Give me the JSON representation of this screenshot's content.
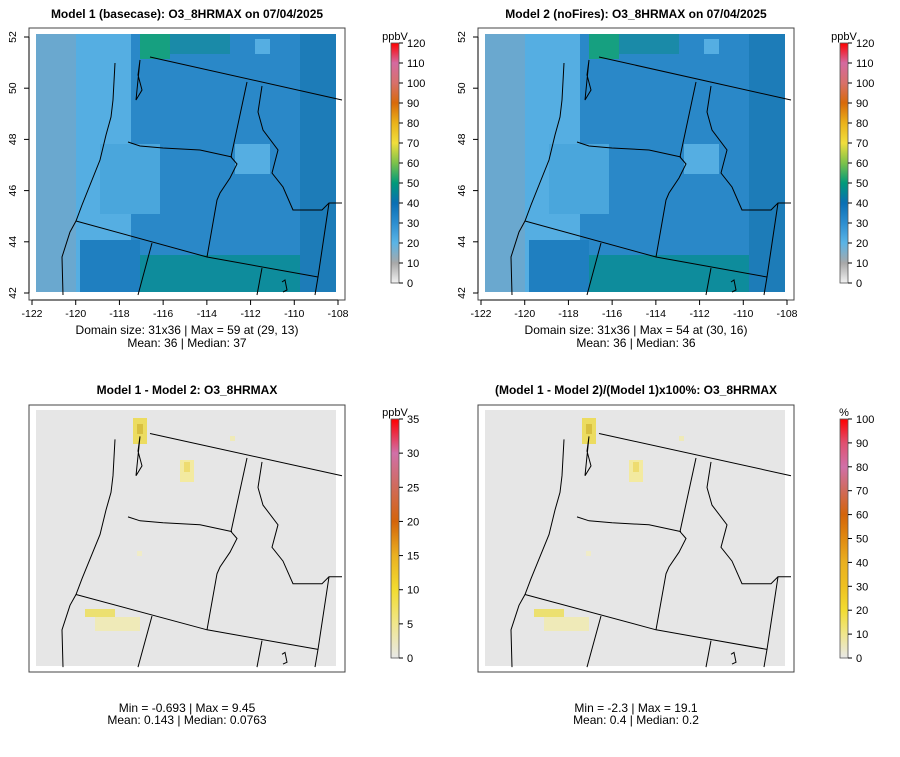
{
  "panels": [
    {
      "id": "model1",
      "title": "Model 1 (basecase): O3_8HRMAX on 07/04/2025",
      "stats": [
        "Domain size: 31x36 | Max = 59 at (29, 13)",
        "Mean: 36 |  Median: 37"
      ],
      "colorbar": {
        "unit": "ppbV",
        "ticks": [
          "0",
          "10",
          "20",
          "30",
          "40",
          "50",
          "60",
          "70",
          "80",
          "90",
          "100",
          "110",
          "120"
        ],
        "colors": [
          "#f2f2f2",
          "#a8a8a8",
          "#5ab4e6",
          "#2d8ed0",
          "#0a6fb4",
          "#009a7a",
          "#7cc24a",
          "#f0de3c",
          "#eab21a",
          "#d86a0a",
          "#d8706a",
          "#d46aa0",
          "#ff0000"
        ]
      },
      "axes": {
        "x_ticks": [
          "-122",
          "-120",
          "-118",
          "-116",
          "-114",
          "-112",
          "-110",
          "-108"
        ],
        "y_ticks": [
          "42",
          "44",
          "46",
          "48",
          "50",
          "52"
        ]
      },
      "style": "ozone"
    },
    {
      "id": "model2",
      "title": "Model 2 (noFires): O3_8HRMAX on 07/04/2025",
      "stats": [
        "Domain size: 31x36 | Max = 54 at (30, 16)",
        "Mean: 36 |  Median: 36"
      ],
      "colorbar": {
        "unit": "ppbV",
        "ticks": [
          "0",
          "10",
          "20",
          "30",
          "40",
          "50",
          "60",
          "70",
          "80",
          "90",
          "100",
          "110",
          "120"
        ],
        "colors": [
          "#f2f2f2",
          "#a8a8a8",
          "#5ab4e6",
          "#2d8ed0",
          "#0a6fb4",
          "#009a7a",
          "#7cc24a",
          "#f0de3c",
          "#eab21a",
          "#d86a0a",
          "#d8706a",
          "#d46aa0",
          "#ff0000"
        ]
      },
      "axes": {
        "x_ticks": [
          "-122",
          "-120",
          "-118",
          "-116",
          "-114",
          "-112",
          "-110",
          "-108"
        ],
        "y_ticks": [
          "42",
          "44",
          "46",
          "48",
          "50",
          "52"
        ]
      },
      "style": "ozone"
    },
    {
      "id": "diff",
      "title": "Model 1 - Model 2: O3_8HRMAX",
      "stats": [
        "Min = -0.693 | Max = 9.45",
        "Mean: 0.143 |  Median: 0.0763"
      ],
      "colorbar": {
        "unit": "ppbV",
        "ticks": [
          "0",
          "5",
          "10",
          "15",
          "20",
          "25",
          "30",
          "35"
        ],
        "colors": [
          "#e8e8e8",
          "#f0e68c",
          "#f2dc30",
          "#eab020",
          "#d4640a",
          "#d06a5a",
          "#d070a8",
          "#ff0000"
        ]
      },
      "axes": null,
      "style": "diff"
    },
    {
      "id": "pctdiff",
      "title": "(Model 1 - Model 2)/(Model 1)x100%: O3_8HRMAX",
      "stats": [
        "Min = -2.3 | Max = 19.1",
        "Mean: 0.4 |  Median: 0.2"
      ],
      "colorbar": {
        "unit": "%",
        "ticks": [
          "0",
          "10",
          "20",
          "30",
          "40",
          "50",
          "60",
          "70",
          "80",
          "90",
          "100"
        ],
        "colors": [
          "#e8e8e8",
          "#f0e68c",
          "#f2dc30",
          "#eec020",
          "#eab020",
          "#e08a10",
          "#d4640a",
          "#d06a5a",
          "#d070a8",
          "#e05070",
          "#ff0000"
        ]
      },
      "axes": null,
      "style": "diff"
    }
  ]
}
